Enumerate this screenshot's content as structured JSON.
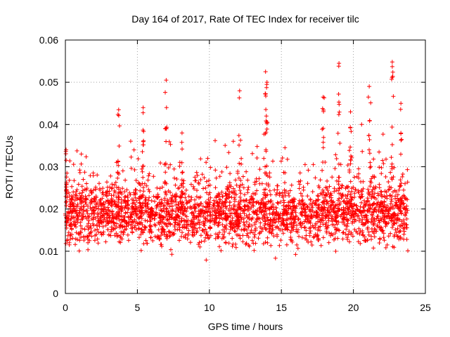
{
  "chart_data": {
    "type": "scatter",
    "title": "Day 164 of 2017, Rate Of TEC Index for receiver tilc",
    "xlabel": "GPS time / hours",
    "ylabel": "ROTI / TECUs",
    "xlim": [
      0,
      25
    ],
    "ylim": [
      0,
      0.06
    ],
    "x_ticks": [
      0,
      5,
      10,
      15,
      20,
      25
    ],
    "y_ticks": [
      0,
      0.01,
      0.02,
      0.03,
      0.04,
      0.05,
      0.06
    ],
    "x_tick_labels": [
      "0",
      "5",
      "10",
      "15",
      "20",
      "25"
    ],
    "y_tick_labels": [
      "0",
      "0.01",
      "0.02",
      "0.03",
      "0.04",
      "0.05",
      "0.06"
    ],
    "grid": true,
    "marker": "+",
    "marker_color": "#ff0000",
    "series": [
      {
        "name": "ROTI",
        "x_range": [
          0,
          23.8
        ],
        "typical_range": [
          0.008,
          0.03
        ],
        "peaks": [
          {
            "x": 0.05,
            "y": 0.034
          },
          {
            "x": 3.7,
            "y": 0.0435
          },
          {
            "x": 5.4,
            "y": 0.044
          },
          {
            "x": 7.0,
            "y": 0.0505
          },
          {
            "x": 8.1,
            "y": 0.038
          },
          {
            "x": 12.1,
            "y": 0.048
          },
          {
            "x": 13.9,
            "y": 0.0525
          },
          {
            "x": 14.0,
            "y": 0.05
          },
          {
            "x": 17.9,
            "y": 0.0465
          },
          {
            "x": 19.0,
            "y": 0.0545
          },
          {
            "x": 19.8,
            "y": 0.043
          },
          {
            "x": 21.1,
            "y": 0.049
          },
          {
            "x": 22.7,
            "y": 0.0548
          },
          {
            "x": 23.3,
            "y": 0.045
          }
        ]
      }
    ]
  }
}
